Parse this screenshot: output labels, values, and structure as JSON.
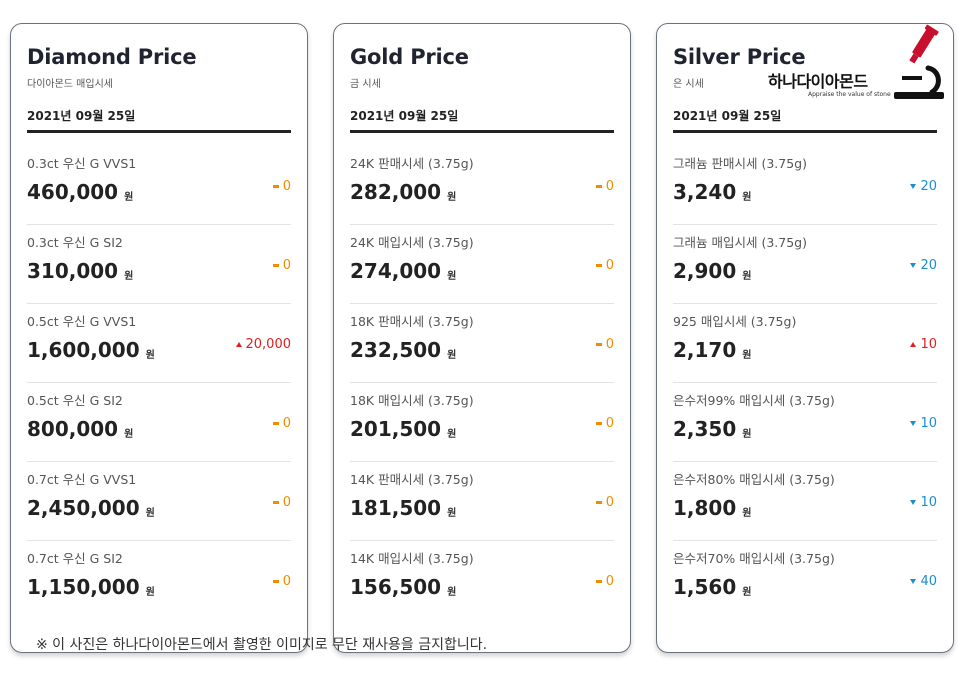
{
  "colors": {
    "flat": "#f08c00",
    "up": "#e02020",
    "down": "#1a8fd0",
    "logo_red": "#c8102e"
  },
  "cards": [
    {
      "title": "Diamond Price",
      "subtitle": "다이아몬드 매입시세",
      "date": "2021년 09월 25일",
      "rows": [
        {
          "label": "0.3ct 우신 G VVS1",
          "price": "460,000",
          "unit": "원",
          "change": "0",
          "direction": "flat"
        },
        {
          "label": "0.3ct 우신 G SI2",
          "price": "310,000",
          "unit": "원",
          "change": "0",
          "direction": "flat"
        },
        {
          "label": "0.5ct 우신 G VVS1",
          "price": "1,600,000",
          "unit": "원",
          "change": "20,000",
          "direction": "up"
        },
        {
          "label": "0.5ct 우신 G SI2",
          "price": "800,000",
          "unit": "원",
          "change": "0",
          "direction": "flat"
        },
        {
          "label": "0.7ct 우신 G VVS1",
          "price": "2,450,000",
          "unit": "원",
          "change": "0",
          "direction": "flat"
        },
        {
          "label": "0.7ct 우신 G SI2",
          "price": "1,150,000",
          "unit": "원",
          "change": "0",
          "direction": "flat"
        }
      ]
    },
    {
      "title": "Gold Price",
      "subtitle": "금 시세",
      "date": "2021년 09월 25일",
      "rows": [
        {
          "label": "24K 판매시세 (3.75g)",
          "price": "282,000",
          "unit": "원",
          "change": "0",
          "direction": "flat"
        },
        {
          "label": "24K 매입시세 (3.75g)",
          "price": "274,000",
          "unit": "원",
          "change": "0",
          "direction": "flat"
        },
        {
          "label": "18K 판매시세 (3.75g)",
          "price": "232,500",
          "unit": "원",
          "change": "0",
          "direction": "flat"
        },
        {
          "label": "18K 매입시세 (3.75g)",
          "price": "201,500",
          "unit": "원",
          "change": "0",
          "direction": "flat"
        },
        {
          "label": "14K 판매시세 (3.75g)",
          "price": "181,500",
          "unit": "원",
          "change": "0",
          "direction": "flat"
        },
        {
          "label": "14K 매입시세 (3.75g)",
          "price": "156,500",
          "unit": "원",
          "change": "0",
          "direction": "flat"
        }
      ]
    },
    {
      "title": "Silver Price",
      "subtitle": "은 시세",
      "date": "2021년 09월 25일",
      "rows": [
        {
          "label": "그래늄 판매시세 (3.75g)",
          "price": "3,240",
          "unit": "원",
          "change": "20",
          "direction": "down"
        },
        {
          "label": "그래늄 매입시세 (3.75g)",
          "price": "2,900",
          "unit": "원",
          "change": "20",
          "direction": "down"
        },
        {
          "label": "925 매입시세 (3.75g)",
          "price": "2,170",
          "unit": "원",
          "change": "10",
          "direction": "up"
        },
        {
          "label": "은수저99% 매입시세 (3.75g)",
          "price": "2,350",
          "unit": "원",
          "change": "10",
          "direction": "down"
        },
        {
          "label": "은수저80% 매입시세 (3.75g)",
          "price": "1,800",
          "unit": "원",
          "change": "10",
          "direction": "down"
        },
        {
          "label": "은수저70% 매입시세 (3.75g)",
          "price": "1,560",
          "unit": "원",
          "change": "40",
          "direction": "down"
        }
      ]
    }
  ],
  "logo": {
    "name": "하나다이아몬드",
    "tagline": "Appraise the value of stone",
    "icon": "microscope-icon"
  },
  "footer_note": "※ 이 사진은 하나다이아몬드에서 촬영한 이미지로 무단 재사용을 금지합니다."
}
